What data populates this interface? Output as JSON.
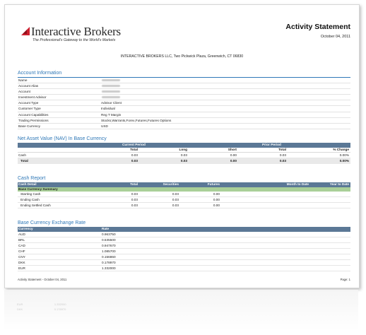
{
  "brand": {
    "name": "Interactive Brokers",
    "tagline": "The Professional's Gateway to the World's Markets",
    "color": "#cc1f2e"
  },
  "header": {
    "title": "Activity Statement",
    "date": "October 04, 2011",
    "address": "INTERACTIVE BROKERS LLC, Two Pickwick Plaza, Greenwich, CT 06830"
  },
  "account_info": {
    "title": "Account Information",
    "rows": [
      {
        "label": "Name",
        "value": "",
        "redacted": true
      },
      {
        "label": "Account Alias",
        "value": "",
        "redacted": true
      },
      {
        "label": "Account",
        "value": "",
        "redacted": true
      },
      {
        "label": "Investment Advisor",
        "value": "",
        "redacted": true
      },
      {
        "label": "Account Type",
        "value": "Advisor Client",
        "redacted": false
      },
      {
        "label": "Customer Type",
        "value": "Individual",
        "redacted": false
      },
      {
        "label": "Account Capabilities",
        "value": "Reg T Margin",
        "redacted": false
      },
      {
        "label": "Trading Permissions",
        "value": "Stocks,Warrants,Forex,Futures,Futures Options",
        "redacted": false
      },
      {
        "label": "Base Currency",
        "value": "USD",
        "redacted": false
      }
    ]
  },
  "nav": {
    "title": "Net Asset Value (NAV) In Base Currency",
    "group_current": "Current Period",
    "group_prior": "Prior Period",
    "columns": [
      "Total",
      "Long",
      "Short",
      "Total",
      "% Change"
    ],
    "rows": [
      {
        "label": "Cash",
        "values": [
          "0.03",
          "0.03",
          "0.00",
          "0.03",
          "0.00%"
        ]
      }
    ],
    "total": {
      "label": "Total",
      "values": [
        "0.03",
        "0.03",
        "0.00",
        "0.03",
        "0.00%"
      ]
    }
  },
  "cash_report": {
    "title": "Cash Report",
    "columns": [
      "Cash Detail",
      "Total",
      "Securities",
      "Futures",
      "Month to Date",
      "Year to Date"
    ],
    "summary_label": "Base Currency Summary",
    "rows": [
      {
        "label": "Starting Cash",
        "values": [
          "0.03",
          "0.03",
          "0.00"
        ]
      },
      {
        "label": "Ending Cash",
        "values": [
          "0.03",
          "0.03",
          "0.00"
        ]
      },
      {
        "label": "Ending Settled Cash",
        "values": [
          "0.03",
          "0.03",
          "0.00"
        ]
      }
    ]
  },
  "fx": {
    "title": "Base Currency Exchange Rate",
    "columns": [
      "Currency",
      "Rate"
    ],
    "rows": [
      {
        "currency": "AUD",
        "rate": "0.963750"
      },
      {
        "currency": "BRL",
        "rate": "0.535500"
      },
      {
        "currency": "CAD",
        "rate": "0.947670"
      },
      {
        "currency": "CHF",
        "rate": "1.085700"
      },
      {
        "currency": "CNY",
        "rate": "0.156860"
      },
      {
        "currency": "DKK",
        "rate": "0.178970"
      },
      {
        "currency": "EUR",
        "rate": "1.332000"
      }
    ]
  },
  "footer": {
    "left": "Activity Statement - October 04, 2011",
    "right": "Page: 1"
  }
}
